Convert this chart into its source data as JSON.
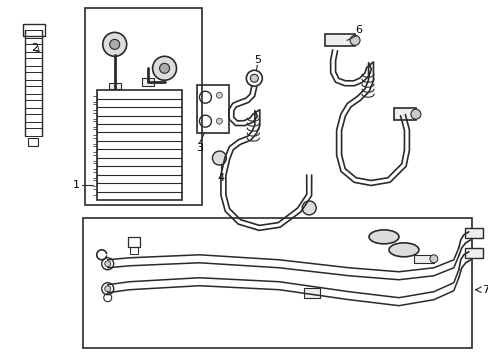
{
  "bg_color": "#ffffff",
  "line_color": "#2a2a2a",
  "figsize": [
    4.89,
    3.6
  ],
  "dpi": 100
}
